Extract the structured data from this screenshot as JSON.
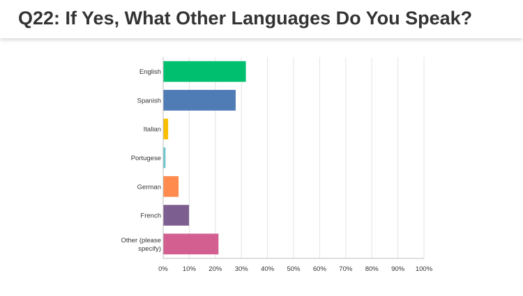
{
  "page": {
    "title": "Q22: If Yes, What Other Languages Do You Speak?"
  },
  "chart_data": {
    "type": "bar",
    "orientation": "horizontal",
    "title": "Q22: If Yes, What Other Languages Do You Speak?",
    "categories": [
      "English",
      "Spanish",
      "Italian",
      "Portugese",
      "German",
      "French",
      "Other (please specify)"
    ],
    "category_lines": [
      [
        "English"
      ],
      [
        "Spanish"
      ],
      [
        "Italian"
      ],
      [
        "Portugese"
      ],
      [
        "German"
      ],
      [
        "French"
      ],
      [
        "Other (please",
        "specify)"
      ]
    ],
    "values": [
      31.7,
      27.8,
      1.9,
      0.9,
      5.9,
      9.9,
      21.2
    ],
    "colors": [
      "#00BF6F",
      "#507CB6",
      "#F9BE00",
      "#6BC8CD",
      "#FF8B4F",
      "#7D5E90",
      "#D25F90"
    ],
    "xlim": [
      0,
      100
    ],
    "xticks": [
      0,
      10,
      20,
      30,
      40,
      50,
      60,
      70,
      80,
      90,
      100
    ],
    "tick_labels": [
      "0%",
      "10%",
      "20%",
      "30%",
      "40%",
      "50%",
      "60%",
      "70%",
      "80%",
      "90%",
      "100%"
    ],
    "grid": true
  }
}
